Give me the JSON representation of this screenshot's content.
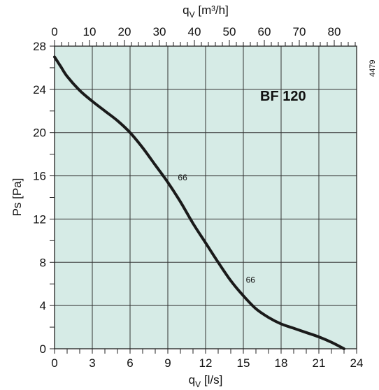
{
  "chart_data": {
    "type": "line",
    "title": "BF 120",
    "side_label": "4479",
    "xlabel": "q_V [l/s]",
    "xlabel_main": "q",
    "xlabel_sub": "V",
    "xlabel_unit": " [l/s]",
    "x2label_main": "q",
    "x2label_sub": "V",
    "x2label_unit": " [m³/h]",
    "ylabel": "Ps [Pa]",
    "xlim": [
      0,
      24
    ],
    "ylim": [
      0,
      28
    ],
    "x2lim": [
      0,
      86.4
    ],
    "xticks": [
      0,
      3,
      6,
      9,
      12,
      15,
      18,
      21,
      24
    ],
    "yticks": [
      0,
      4,
      8,
      12,
      16,
      20,
      24,
      28
    ],
    "x2ticks": [
      0,
      10,
      20,
      30,
      40,
      50,
      60,
      70,
      80
    ],
    "grid": true,
    "background": "#d6ebe6",
    "line_color": "#1a1a1a",
    "series": [
      {
        "x": [
          0,
          0.5,
          1,
          2,
          3,
          4,
          5,
          6,
          7,
          8,
          9,
          10,
          11,
          12,
          13,
          14,
          15,
          16,
          17,
          18,
          19,
          20,
          21,
          22,
          23
        ],
        "y": [
          27,
          26.1,
          25.2,
          23.9,
          22.9,
          22.0,
          21.1,
          20.0,
          18.6,
          17.0,
          15.4,
          13.6,
          11.6,
          9.8,
          8.0,
          6.3,
          4.9,
          3.7,
          2.9,
          2.3,
          1.9,
          1.5,
          1.1,
          0.6,
          0
        ]
      }
    ],
    "annotations": [
      {
        "text": "66",
        "x": 9.8,
        "y": 15.6
      },
      {
        "text": "66",
        "x": 15.2,
        "y": 6.1
      }
    ]
  }
}
